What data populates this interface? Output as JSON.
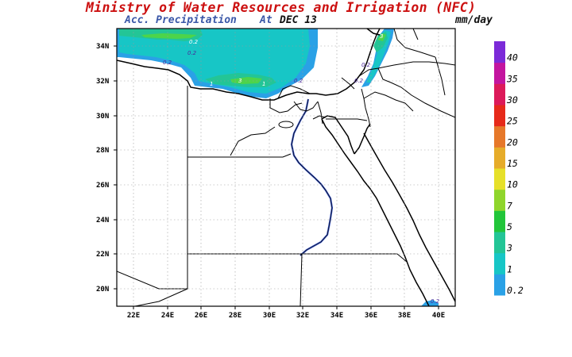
{
  "header": {
    "title": "Ministry of Water Resources and Irrigation (NFC)",
    "subtitle_prefix": "Acc. Precipitation",
    "subtitle_at": "At",
    "date": "DEC 13",
    "units": "mm/day"
  },
  "map": {
    "lat_labels": [
      "34N",
      "32N",
      "30N",
      "28N",
      "26N",
      "24N",
      "22N",
      "20N"
    ],
    "lon_labels": [
      "22E",
      "24E",
      "26E",
      "28E",
      "30E",
      "32E",
      "34E",
      "36E",
      "38E",
      "40E"
    ],
    "contour_labels": [
      "0.2",
      "0.2",
      "1",
      "3",
      "1",
      "0.2",
      "0.2",
      "1",
      "3",
      "0.2",
      "0.2",
      "0.2"
    ]
  },
  "colorbar": {
    "levels": [
      "0.2",
      "1",
      "3",
      "5",
      "7",
      "10",
      "15",
      "20",
      "25",
      "30",
      "35",
      "40"
    ],
    "colors": [
      "#2aa1e6",
      "#17c6c6",
      "#23c596",
      "#22c53a",
      "#8fd52c",
      "#e6e02a",
      "#e6ac2a",
      "#e6782a",
      "#e62a1a",
      "#dc1a5a",
      "#c3159f",
      "#7b2ad8"
    ]
  }
}
